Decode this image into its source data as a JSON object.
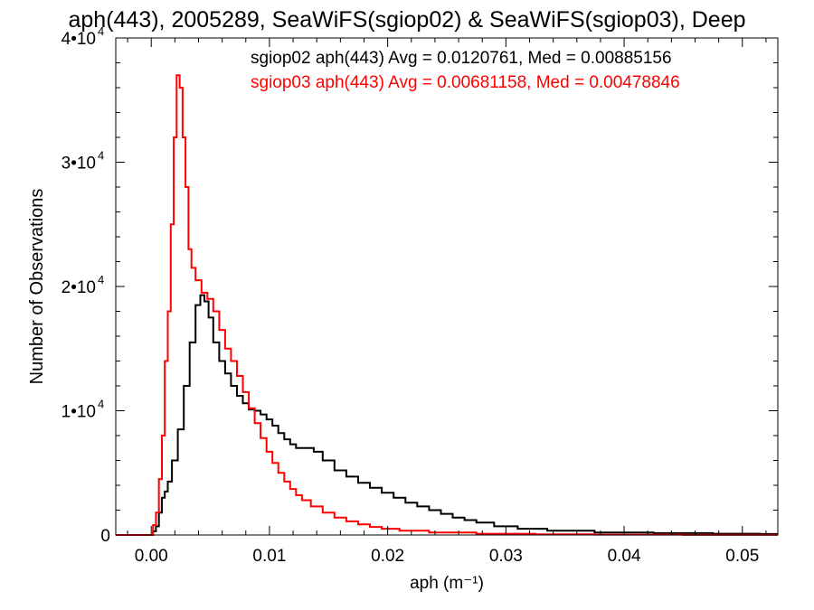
{
  "chart_data": {
    "type": "line",
    "title": "aph(443), 2005289, SeaWiFS(sgiop02) & SeaWiFS(sgiop03), Deep",
    "xlabel": "aph (m⁻¹)",
    "ylabel": "Number of Observations",
    "xlim": [
      -0.003,
      0.053
    ],
    "ylim": [
      0,
      40000
    ],
    "x_ticks": [
      {
        "value": 0.0,
        "label": "0.00"
      },
      {
        "value": 0.01,
        "label": "0.01"
      },
      {
        "value": 0.02,
        "label": "0.02"
      },
      {
        "value": 0.03,
        "label": "0.03"
      },
      {
        "value": 0.04,
        "label": "0.04"
      },
      {
        "value": 0.05,
        "label": "0.05"
      }
    ],
    "y_ticks": [
      {
        "value": 0,
        "mant": "0",
        "exp": ""
      },
      {
        "value": 10000,
        "mant": "1•10",
        "exp": "4"
      },
      {
        "value": 20000,
        "mant": "2•10",
        "exp": "4"
      },
      {
        "value": 30000,
        "mant": "3•10",
        "exp": "4"
      },
      {
        "value": 40000,
        "mant": "4•10",
        "exp": "4"
      }
    ],
    "grid": false,
    "legend_position": "top-right",
    "series": [
      {
        "name": "sgiop02 aph(443) Avg = 0.0120761, Med = 0.00885156",
        "color": "#000000",
        "points": [
          [
            -0.003,
            0
          ],
          [
            0.0,
            0
          ],
          [
            0.0003,
            300
          ],
          [
            0.0005,
            700
          ],
          [
            0.0008,
            1800
          ],
          [
            0.001,
            3000
          ],
          [
            0.0013,
            3500
          ],
          [
            0.0015,
            4300
          ],
          [
            0.002,
            6000
          ],
          [
            0.0025,
            8500
          ],
          [
            0.003,
            12000
          ],
          [
            0.0035,
            15500
          ],
          [
            0.004,
            18500
          ],
          [
            0.0043,
            19300
          ],
          [
            0.0047,
            18800
          ],
          [
            0.005,
            17500
          ],
          [
            0.0055,
            15500
          ],
          [
            0.006,
            14000
          ],
          [
            0.0065,
            13000
          ],
          [
            0.007,
            12000
          ],
          [
            0.0075,
            11200
          ],
          [
            0.008,
            10600
          ],
          [
            0.0085,
            10100
          ],
          [
            0.009,
            10000
          ],
          [
            0.0095,
            9700
          ],
          [
            0.01,
            9300
          ],
          [
            0.0105,
            8800
          ],
          [
            0.011,
            8200
          ],
          [
            0.0115,
            7700
          ],
          [
            0.012,
            7300
          ],
          [
            0.0125,
            7000
          ],
          [
            0.013,
            7000
          ],
          [
            0.0135,
            7000
          ],
          [
            0.014,
            6700
          ],
          [
            0.015,
            6000
          ],
          [
            0.016,
            5200
          ],
          [
            0.017,
            4700
          ],
          [
            0.018,
            4200
          ],
          [
            0.019,
            3800
          ],
          [
            0.02,
            3400
          ],
          [
            0.021,
            3000
          ],
          [
            0.022,
            2600
          ],
          [
            0.023,
            2300
          ],
          [
            0.024,
            2000
          ],
          [
            0.025,
            1700
          ],
          [
            0.026,
            1400
          ],
          [
            0.027,
            1200
          ],
          [
            0.028,
            1000
          ],
          [
            0.03,
            700
          ],
          [
            0.032,
            500
          ],
          [
            0.035,
            350
          ],
          [
            0.04,
            200
          ],
          [
            0.045,
            150
          ],
          [
            0.05,
            100
          ],
          [
            0.053,
            80
          ]
        ]
      },
      {
        "name": "sgiop03 aph(443) Avg = 0.00681158, Med = 0.00478846",
        "color": "#ff0000",
        "points": [
          [
            -0.003,
            0
          ],
          [
            0.0,
            0
          ],
          [
            0.0003,
            800
          ],
          [
            0.0005,
            1800
          ],
          [
            0.0008,
            4500
          ],
          [
            0.001,
            8000
          ],
          [
            0.0013,
            14000
          ],
          [
            0.0015,
            18000
          ],
          [
            0.0018,
            25000
          ],
          [
            0.002,
            32000
          ],
          [
            0.0023,
            37000
          ],
          [
            0.0025,
            36000
          ],
          [
            0.0028,
            32000
          ],
          [
            0.003,
            28000
          ],
          [
            0.0033,
            23000
          ],
          [
            0.0035,
            21500
          ],
          [
            0.004,
            20500
          ],
          [
            0.0045,
            19500
          ],
          [
            0.005,
            19000
          ],
          [
            0.0055,
            18000
          ],
          [
            0.006,
            16500
          ],
          [
            0.0065,
            15000
          ],
          [
            0.007,
            14000
          ],
          [
            0.0075,
            12800
          ],
          [
            0.008,
            11500
          ],
          [
            0.0085,
            10200
          ],
          [
            0.009,
            9000
          ],
          [
            0.0095,
            7800
          ],
          [
            0.01,
            6700
          ],
          [
            0.0105,
            5800
          ],
          [
            0.011,
            5000
          ],
          [
            0.0115,
            4300
          ],
          [
            0.012,
            3700
          ],
          [
            0.0125,
            3200
          ],
          [
            0.013,
            2800
          ],
          [
            0.014,
            2300
          ],
          [
            0.015,
            1800
          ],
          [
            0.016,
            1400
          ],
          [
            0.017,
            1100
          ],
          [
            0.018,
            850
          ],
          [
            0.019,
            650
          ],
          [
            0.02,
            500
          ],
          [
            0.022,
            350
          ],
          [
            0.025,
            200
          ],
          [
            0.03,
            100
          ],
          [
            0.035,
            50
          ],
          [
            0.04,
            30
          ],
          [
            0.05,
            10
          ],
          [
            0.053,
            5
          ]
        ]
      }
    ]
  }
}
